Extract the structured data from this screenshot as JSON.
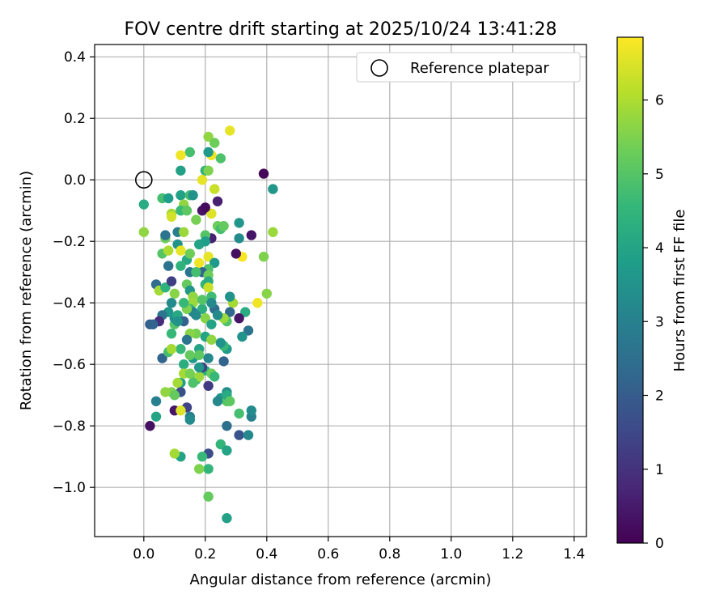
{
  "chart_data": {
    "type": "scatter",
    "title": "FOV centre drift starting at 2025/10/24 13:41:28",
    "xlabel": "Angular distance from reference (arcmin)",
    "ylabel": "Rotation from reference (arcmin)",
    "xlim": [
      -0.16,
      1.44
    ],
    "ylim": [
      -1.16,
      0.44
    ],
    "xticks": [
      0.0,
      0.2,
      0.4,
      0.6,
      0.8,
      1.0,
      1.2,
      1.4
    ],
    "xtick_labels": [
      "0.0",
      "0.2",
      "0.4",
      "0.6",
      "0.8",
      "1.0",
      "1.2",
      "1.4"
    ],
    "yticks": [
      0.4,
      0.2,
      0.0,
      -0.2,
      -0.4,
      -0.6,
      -0.8,
      -1.0
    ],
    "ytick_labels": [
      "0.4",
      "0.2",
      "0.0",
      "−0.2",
      "−0.4",
      "−0.6",
      "−0.8",
      "−1.0"
    ],
    "grid": true,
    "legend": {
      "placement": "top-right",
      "label": "Reference platepar"
    },
    "reference_point": {
      "x": 0.0,
      "y": 0.0
    },
    "colorbar": {
      "label": "Hours from first FF file",
      "range": [
        0,
        6.85
      ],
      "ticks": [
        0,
        1,
        2,
        3,
        4,
        5,
        6
      ],
      "tick_labels": [
        "0",
        "1",
        "2",
        "3",
        "4",
        "5",
        "6"
      ],
      "colormap": "viridis"
    },
    "colors": [
      "#440154",
      "#482878",
      "#3e4989",
      "#31688e",
      "#26828e",
      "#1f9e89",
      "#35b779",
      "#6ece58",
      "#b5de2b",
      "#fde725"
    ],
    "points": [
      [
        0.39,
        0.02,
        0.1
      ],
      [
        0.42,
        -0.03,
        3.6
      ],
      [
        0.42,
        -0.17,
        5.8
      ],
      [
        0.35,
        -0.18,
        0.4
      ],
      [
        0.31,
        -0.14,
        3.6
      ],
      [
        0.31,
        -0.19,
        3.3
      ],
      [
        0.32,
        -0.25,
        6.8
      ],
      [
        0.39,
        -0.25,
        5.5
      ],
      [
        0.3,
        -0.24,
        0.3
      ],
      [
        0.29,
        -0.4,
        5.9
      ],
      [
        0.37,
        -0.4,
        6.7
      ],
      [
        0.4,
        -0.37,
        5.6
      ],
      [
        0.33,
        -0.43,
        4.2
      ],
      [
        0.31,
        -0.45,
        0.4
      ],
      [
        0.28,
        -0.43,
        2.3
      ],
      [
        0.34,
        -0.49,
        2.6
      ],
      [
        0.32,
        -0.51,
        3.5
      ],
      [
        0.28,
        -0.38,
        3.5
      ],
      [
        0.27,
        -0.46,
        4.9
      ],
      [
        0.26,
        -0.45,
        5.8
      ],
      [
        0.27,
        -0.55,
        3.7
      ],
      [
        0.26,
        -0.59,
        2.2
      ],
      [
        0.27,
        -0.69,
        3.4
      ],
      [
        0.25,
        -0.71,
        3.6
      ],
      [
        0.27,
        -0.72,
        5.0
      ],
      [
        0.24,
        -0.72,
        3.2
      ],
      [
        0.27,
        -0.8,
        2.5
      ],
      [
        0.31,
        -0.76,
        4.8
      ],
      [
        0.31,
        -0.83,
        1.8
      ],
      [
        0.34,
        -0.83,
        3.2
      ],
      [
        0.35,
        -0.77,
        3.0
      ],
      [
        0.35,
        -0.75,
        3.3
      ],
      [
        0.25,
        -0.86,
        4.5
      ],
      [
        0.27,
        -0.88,
        4.0
      ],
      [
        0.21,
        -0.89,
        1.6
      ],
      [
        0.19,
        -0.9,
        4.6
      ],
      [
        0.21,
        -0.94,
        4.5
      ],
      [
        0.18,
        -0.94,
        5.5
      ],
      [
        0.21,
        -1.03,
        5.2
      ],
      [
        0.27,
        -1.1,
        3.9
      ],
      [
        0.21,
        0.14,
        5.7
      ],
      [
        0.23,
        0.12,
        5.3
      ],
      [
        0.28,
        0.16,
        6.6
      ],
      [
        0.22,
        0.08,
        6.7
      ],
      [
        0.25,
        0.07,
        4.9
      ],
      [
        0.21,
        0.09,
        3.7
      ],
      [
        0.15,
        0.09,
        4.8
      ],
      [
        0.12,
        0.08,
        6.7
      ],
      [
        0.12,
        0.03,
        3.9
      ],
      [
        0.2,
        0.03,
        4.4
      ],
      [
        0.21,
        0.03,
        5.5
      ],
      [
        0.19,
        0.0,
        6.6
      ],
      [
        0.23,
        -0.03,
        6.3
      ],
      [
        0.24,
        -0.07,
        0.6
      ],
      [
        0.22,
        -0.11,
        6.5
      ],
      [
        0.19,
        -0.1,
        0.4
      ],
      [
        0.2,
        -0.09,
        0.2
      ],
      [
        0.17,
        -0.13,
        5.4
      ],
      [
        0.24,
        -0.15,
        5.3
      ],
      [
        0.25,
        -0.16,
        4.8
      ],
      [
        0.26,
        -0.15,
        5.2
      ],
      [
        0.22,
        -0.19,
        0.6
      ],
      [
        0.2,
        -0.18,
        5.0
      ],
      [
        0.18,
        -0.21,
        4.0
      ],
      [
        0.21,
        -0.25,
        6.6
      ],
      [
        0.23,
        -0.27,
        3.7
      ],
      [
        0.21,
        -0.29,
        4.9
      ],
      [
        0.19,
        -0.3,
        2.2
      ],
      [
        0.21,
        -0.31,
        5.3
      ],
      [
        0.2,
        -0.34,
        4.5
      ],
      [
        0.21,
        -0.33,
        4.2
      ],
      [
        0.21,
        -0.35,
        6.3
      ],
      [
        0.22,
        -0.38,
        4.7
      ],
      [
        0.19,
        -0.42,
        4.3
      ],
      [
        0.2,
        -0.45,
        5.6
      ],
      [
        0.23,
        -0.42,
        2.5
      ],
      [
        0.24,
        -0.44,
        3.3
      ],
      [
        0.2,
        -0.51,
        4.0
      ],
      [
        0.22,
        -0.52,
        5.7
      ],
      [
        0.26,
        -0.54,
        4.6
      ],
      [
        0.25,
        -0.53,
        3.5
      ],
      [
        0.21,
        -0.58,
        3.2
      ],
      [
        0.2,
        -0.62,
        4.3
      ],
      [
        0.22,
        -0.63,
        5.3
      ],
      [
        0.21,
        -0.67,
        1.2
      ],
      [
        0.17,
        -0.65,
        4.7
      ],
      [
        0.18,
        -0.64,
        5.8
      ],
      [
        0.16,
        -0.58,
        3.7
      ],
      [
        0.18,
        -0.55,
        4.0
      ],
      [
        0.18,
        -0.57,
        5.1
      ],
      [
        0.17,
        -0.5,
        5.4
      ],
      [
        0.15,
        -0.5,
        5.6
      ],
      [
        0.14,
        -0.52,
        2.7
      ],
      [
        0.12,
        -0.55,
        4.6
      ],
      [
        0.13,
        -0.6,
        4.3
      ],
      [
        0.12,
        -0.66,
        3.8
      ],
      [
        0.11,
        -0.66,
        5.9
      ],
      [
        0.12,
        -0.69,
        1.7
      ],
      [
        0.09,
        -0.69,
        5.5
      ],
      [
        0.07,
        -0.69,
        5.7
      ],
      [
        0.1,
        -0.7,
        5.2
      ],
      [
        0.14,
        -0.74,
        1.4
      ],
      [
        0.15,
        -0.77,
        3.0
      ],
      [
        0.1,
        -0.75,
        0.4
      ],
      [
        0.12,
        -0.75,
        6.5
      ],
      [
        0.15,
        -0.78,
        3.3
      ],
      [
        0.02,
        -0.8,
        0.3
      ],
      [
        0.04,
        -0.77,
        4.0
      ],
      [
        0.04,
        -0.72,
        3.0
      ],
      [
        0.06,
        -0.58,
        2.2
      ],
      [
        0.08,
        -0.56,
        4.8
      ],
      [
        0.09,
        -0.55,
        5.9
      ],
      [
        0.09,
        -0.5,
        4.6
      ],
      [
        0.1,
        -0.47,
        5.0
      ],
      [
        0.1,
        -0.45,
        3.4
      ],
      [
        0.11,
        -0.44,
        4.1
      ],
      [
        0.08,
        -0.43,
        3.6
      ],
      [
        0.06,
        -0.44,
        2.7
      ],
      [
        0.05,
        -0.46,
        0.9
      ],
      [
        0.02,
        -0.47,
        2.0
      ],
      [
        0.03,
        -0.47,
        2.2
      ],
      [
        0.04,
        -0.34,
        2.4
      ],
      [
        0.05,
        -0.36,
        5.9
      ],
      [
        0.07,
        -0.35,
        4.4
      ],
      [
        0.09,
        -0.33,
        1.3
      ],
      [
        0.08,
        -0.28,
        2.6
      ],
      [
        0.06,
        -0.24,
        5.0
      ],
      [
        0.08,
        -0.23,
        6.0
      ],
      [
        0.07,
        -0.19,
        5.3
      ],
      [
        0.07,
        -0.18,
        2.6
      ],
      [
        0.09,
        -0.11,
        5.9
      ],
      [
        0.09,
        -0.12,
        6.4
      ],
      [
        0.06,
        -0.06,
        4.8
      ],
      [
        0.08,
        -0.06,
        3.8
      ],
      [
        0.0,
        -0.08,
        4.2
      ],
      [
        0.0,
        -0.17,
        5.7
      ],
      [
        0.12,
        -0.05,
        3.9
      ],
      [
        0.15,
        -0.05,
        4.8
      ],
      [
        0.16,
        -0.05,
        3.5
      ],
      [
        0.13,
        -0.08,
        5.7
      ],
      [
        0.12,
        -0.1,
        4.6
      ],
      [
        0.14,
        -0.1,
        5.1
      ],
      [
        0.11,
        -0.17,
        2.9
      ],
      [
        0.13,
        -0.17,
        5.8
      ],
      [
        0.11,
        -0.21,
        3.5
      ],
      [
        0.12,
        -0.23,
        6.6
      ],
      [
        0.14,
        -0.26,
        4.1
      ],
      [
        0.15,
        -0.24,
        5.3
      ],
      [
        0.12,
        -0.28,
        4.4
      ],
      [
        0.15,
        -0.3,
        2.7
      ],
      [
        0.14,
        -0.34,
        5.2
      ],
      [
        0.15,
        -0.36,
        3.6
      ],
      [
        0.16,
        -0.38,
        5.7
      ],
      [
        0.16,
        -0.4,
        5.8
      ],
      [
        0.15,
        -0.42,
        4.6
      ],
      [
        0.16,
        -0.43,
        3.1
      ],
      [
        0.14,
        -0.42,
        5.5
      ],
      [
        0.17,
        -0.44,
        3.2
      ],
      [
        0.13,
        -0.46,
        2.1
      ],
      [
        0.11,
        -0.46,
        3.5
      ],
      [
        0.15,
        -0.57,
        5.2
      ],
      [
        0.13,
        -0.63,
        5.9
      ],
      [
        0.16,
        -0.66,
        4.9
      ],
      [
        0.19,
        -0.61,
        1.3
      ],
      [
        0.23,
        -0.64,
        4.6
      ],
      [
        0.12,
        -0.9,
        4.0
      ],
      [
        0.1,
        -0.89,
        5.9
      ],
      [
        0.19,
        -0.39,
        5.0
      ],
      [
        0.2,
        -0.2,
        3.8
      ],
      [
        0.18,
        -0.27,
        6.7
      ],
      [
        0.13,
        -0.4,
        4.6
      ],
      [
        0.09,
        -0.4,
        3.3
      ],
      [
        0.1,
        -0.37,
        5.6
      ],
      [
        0.22,
        -0.47,
        4.0
      ],
      [
        0.27,
        -0.7,
        4.2
      ],
      [
        0.28,
        -0.72,
        5.1
      ],
      [
        0.18,
        -0.61,
        3.6
      ],
      [
        0.15,
        -0.63,
        5.4
      ],
      [
        0.17,
        -0.3,
        4.8
      ],
      [
        0.22,
        -0.4,
        3.3
      ]
    ]
  }
}
